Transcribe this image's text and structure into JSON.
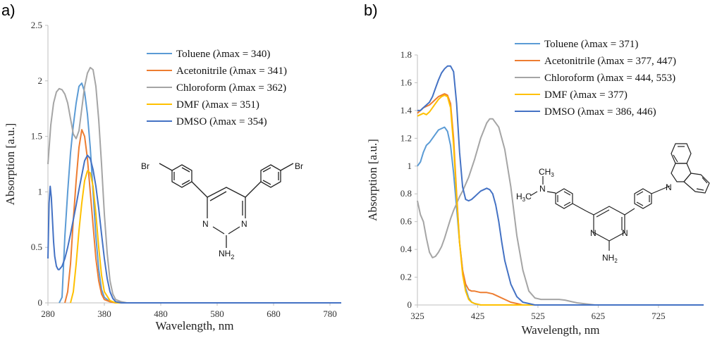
{
  "panels": [
    {
      "label": "a)",
      "chart_data": {
        "type": "line",
        "xlabel": "Wavelength, nm",
        "ylabel": "Absorption [a.u.]",
        "xlim": [
          280,
          800
        ],
        "ylim": [
          0,
          2.5
        ],
        "xticks": [
          "280",
          "380",
          "480",
          "580",
          "680",
          "780"
        ],
        "yticks": [
          "0",
          "0.5",
          "1",
          "1.5",
          "2",
          "2.5"
        ],
        "grid": false,
        "legend_position": "top-right",
        "series": [
          {
            "name": "Toluene (λmax = 340)",
            "color": "#5b9bd5",
            "x": [
              300,
              305,
              310,
              315,
              320,
              325,
              330,
              335,
              340,
              345,
              350,
              355,
              360,
              365,
              370,
              375,
              380,
              390,
              400,
              420,
              500,
              800
            ],
            "y": [
              0,
              0.05,
              0.6,
              1.0,
              1.35,
              1.6,
              1.8,
              1.95,
              1.98,
              1.9,
              1.7,
              1.4,
              1.0,
              0.6,
              0.3,
              0.12,
              0.05,
              0.01,
              0,
              0,
              0,
              0
            ]
          },
          {
            "name": "Acetonitrile (λmax = 341)",
            "color": "#ed7d31",
            "x": [
              310,
              315,
              320,
              325,
              330,
              335,
              340,
              345,
              350,
              355,
              360,
              365,
              370,
              375,
              380,
              390,
              400,
              420,
              800
            ],
            "y": [
              0,
              0.1,
              0.35,
              0.75,
              1.1,
              1.4,
              1.56,
              1.5,
              1.3,
              1.0,
              0.7,
              0.4,
              0.2,
              0.08,
              0.03,
              0.01,
              0,
              0,
              0
            ]
          },
          {
            "name": "Chloroform (λmax = 362)",
            "color": "#a5a5a5",
            "x": [
              280,
              285,
              290,
              295,
              300,
              305,
              310,
              315,
              320,
              325,
              330,
              335,
              340,
              345,
              350,
              355,
              360,
              365,
              370,
              375,
              380,
              385,
              390,
              395,
              400,
              410,
              420,
              500,
              800
            ],
            "y": [
              1.25,
              1.6,
              1.8,
              1.9,
              1.93,
              1.92,
              1.88,
              1.8,
              1.66,
              1.52,
              1.48,
              1.55,
              1.75,
              1.95,
              2.07,
              2.12,
              2.1,
              1.95,
              1.65,
              1.25,
              0.8,
              0.45,
              0.2,
              0.08,
              0.03,
              0.01,
              0,
              0,
              0
            ]
          },
          {
            "name": "DMF (λmax = 351)",
            "color": "#ffc000",
            "x": [
              320,
              325,
              330,
              335,
              340,
              345,
              350,
              355,
              360,
              365,
              370,
              375,
              380,
              390,
              400,
              420,
              800
            ],
            "y": [
              0,
              0.1,
              0.35,
              0.65,
              0.9,
              1.1,
              1.19,
              1.17,
              1.05,
              0.8,
              0.5,
              0.25,
              0.1,
              0.02,
              0,
              0,
              0
            ]
          },
          {
            "name": "DMSO (λmax = 354)",
            "color": "#4472c4",
            "x": [
              280,
              282,
              284,
              286,
              288,
              290,
              292,
              295,
              298,
              300,
              305,
              310,
              315,
              320,
              325,
              330,
              335,
              340,
              345,
              350,
              355,
              360,
              365,
              370,
              375,
              380,
              385,
              390,
              395,
              400,
              410,
              420,
              500,
              800
            ],
            "y": [
              0.4,
              0.9,
              1.05,
              0.95,
              0.75,
              0.55,
              0.42,
              0.33,
              0.3,
              0.3,
              0.33,
              0.4,
              0.5,
              0.62,
              0.75,
              0.88,
              1.02,
              1.15,
              1.28,
              1.33,
              1.3,
              1.2,
              1.05,
              0.85,
              0.62,
              0.4,
              0.22,
              0.1,
              0.04,
              0.01,
              0,
              0,
              0,
              0
            ]
          }
        ]
      }
    },
    {
      "label": "b)",
      "chart_data": {
        "type": "line",
        "xlabel": "Wavelength, nm",
        "ylabel": "Absorption [a.u.]",
        "xlim": [
          325,
          800
        ],
        "ylim": [
          0,
          1.8
        ],
        "xticks": [
          "325",
          "425",
          "525",
          "625",
          "725"
        ],
        "yticks": [
          "0",
          "0.2",
          "0.4",
          "0.6",
          "0.8",
          "1",
          "1.2",
          "1.4",
          "1.6",
          "1.8"
        ],
        "grid": false,
        "legend_position": "top-right",
        "series": [
          {
            "name": "Toluene (λmax = 371)",
            "color": "#5b9bd5",
            "x": [
              325,
              330,
              335,
              340,
              345,
              350,
              355,
              360,
              365,
              370,
              375,
              380,
              385,
              390,
              395,
              400,
              405,
              410,
              415,
              420,
              430,
              450,
              800
            ],
            "y": [
              1.0,
              1.03,
              1.1,
              1.15,
              1.17,
              1.2,
              1.23,
              1.26,
              1.27,
              1.28,
              1.25,
              1.15,
              0.95,
              0.7,
              0.45,
              0.25,
              0.12,
              0.05,
              0.02,
              0.01,
              0,
              0,
              0
            ]
          },
          {
            "name": "Acetonitrile (λmax = 377, 447)",
            "color": "#ed7d31",
            "x": [
              325,
              330,
              335,
              340,
              345,
              350,
              355,
              360,
              365,
              370,
              375,
              380,
              385,
              390,
              395,
              400,
              405,
              410,
              415,
              420,
              430,
              440,
              450,
              460,
              470,
              480,
              490,
              500,
              510,
              800
            ],
            "y": [
              1.38,
              1.4,
              1.42,
              1.43,
              1.44,
              1.46,
              1.48,
              1.5,
              1.51,
              1.52,
              1.51,
              1.45,
              1.2,
              0.8,
              0.45,
              0.25,
              0.15,
              0.11,
              0.1,
              0.1,
              0.09,
              0.09,
              0.08,
              0.06,
              0.04,
              0.02,
              0.01,
              0,
              0,
              0
            ]
          },
          {
            "name": "Chloroform (λmax = 444, 553)",
            "color": "#a5a5a5",
            "x": [
              325,
              330,
              335,
              340,
              345,
              350,
              355,
              360,
              365,
              370,
              375,
              380,
              385,
              390,
              395,
              400,
              410,
              420,
              430,
              440,
              445,
              450,
              460,
              470,
              480,
              490,
              500,
              510,
              520,
              530,
              540,
              550,
              560,
              570,
              580,
              590,
              600,
              620,
              800
            ],
            "y": [
              0.75,
              0.65,
              0.6,
              0.48,
              0.38,
              0.34,
              0.35,
              0.38,
              0.42,
              0.48,
              0.55,
              0.62,
              0.68,
              0.73,
              0.78,
              0.82,
              0.92,
              1.05,
              1.2,
              1.31,
              1.34,
              1.34,
              1.28,
              1.12,
              0.85,
              0.5,
              0.25,
              0.1,
              0.05,
              0.04,
              0.04,
              0.04,
              0.04,
              0.035,
              0.025,
              0.015,
              0.01,
              0,
              0
            ]
          },
          {
            "name": "DMF (λmax = 377)",
            "color": "#ffc000",
            "x": [
              325,
              330,
              335,
              340,
              345,
              350,
              355,
              360,
              365,
              370,
              375,
              380,
              385,
              390,
              395,
              400,
              405,
              410,
              415,
              420,
              430,
              800
            ],
            "y": [
              1.36,
              1.37,
              1.38,
              1.37,
              1.39,
              1.42,
              1.45,
              1.48,
              1.5,
              1.51,
              1.5,
              1.42,
              1.15,
              0.78,
              0.45,
              0.22,
              0.1,
              0.04,
              0.02,
              0.01,
              0,
              0
            ]
          },
          {
            "name": "DMSO (λmax = 386, 446)",
            "color": "#4472c4",
            "x": [
              325,
              330,
              335,
              340,
              345,
              350,
              355,
              360,
              365,
              370,
              375,
              380,
              385,
              390,
              395,
              400,
              405,
              410,
              415,
              420,
              425,
              430,
              435,
              440,
              445,
              450,
              455,
              460,
              465,
              470,
              480,
              490,
              500,
              510,
              520,
              530,
              540,
              550,
              800
            ],
            "y": [
              1.4,
              1.4,
              1.42,
              1.44,
              1.46,
              1.5,
              1.56,
              1.62,
              1.67,
              1.7,
              1.72,
              1.72,
              1.68,
              1.45,
              1.1,
              0.85,
              0.76,
              0.75,
              0.76,
              0.78,
              0.8,
              0.82,
              0.83,
              0.84,
              0.83,
              0.8,
              0.72,
              0.6,
              0.45,
              0.32,
              0.15,
              0.06,
              0.02,
              0.01,
              0,
              0,
              0,
              0,
              0
            ]
          }
        ]
      }
    }
  ],
  "molecule_a": {
    "br_left": "Br",
    "br_right": "Br",
    "n_left": "N",
    "n_right": "N",
    "nh": "NH",
    "sub": "2"
  },
  "molecule_b": {
    "ch3_top": "CH",
    "sub3a": "3",
    "n_amine": "N",
    "ch3_left": "H",
    "ch3_left_c": "C",
    "sub3b": "3",
    "n_left": "N",
    "n_right": "N",
    "nh": "NH",
    "sub": "2",
    "n_carbazole": "N"
  }
}
